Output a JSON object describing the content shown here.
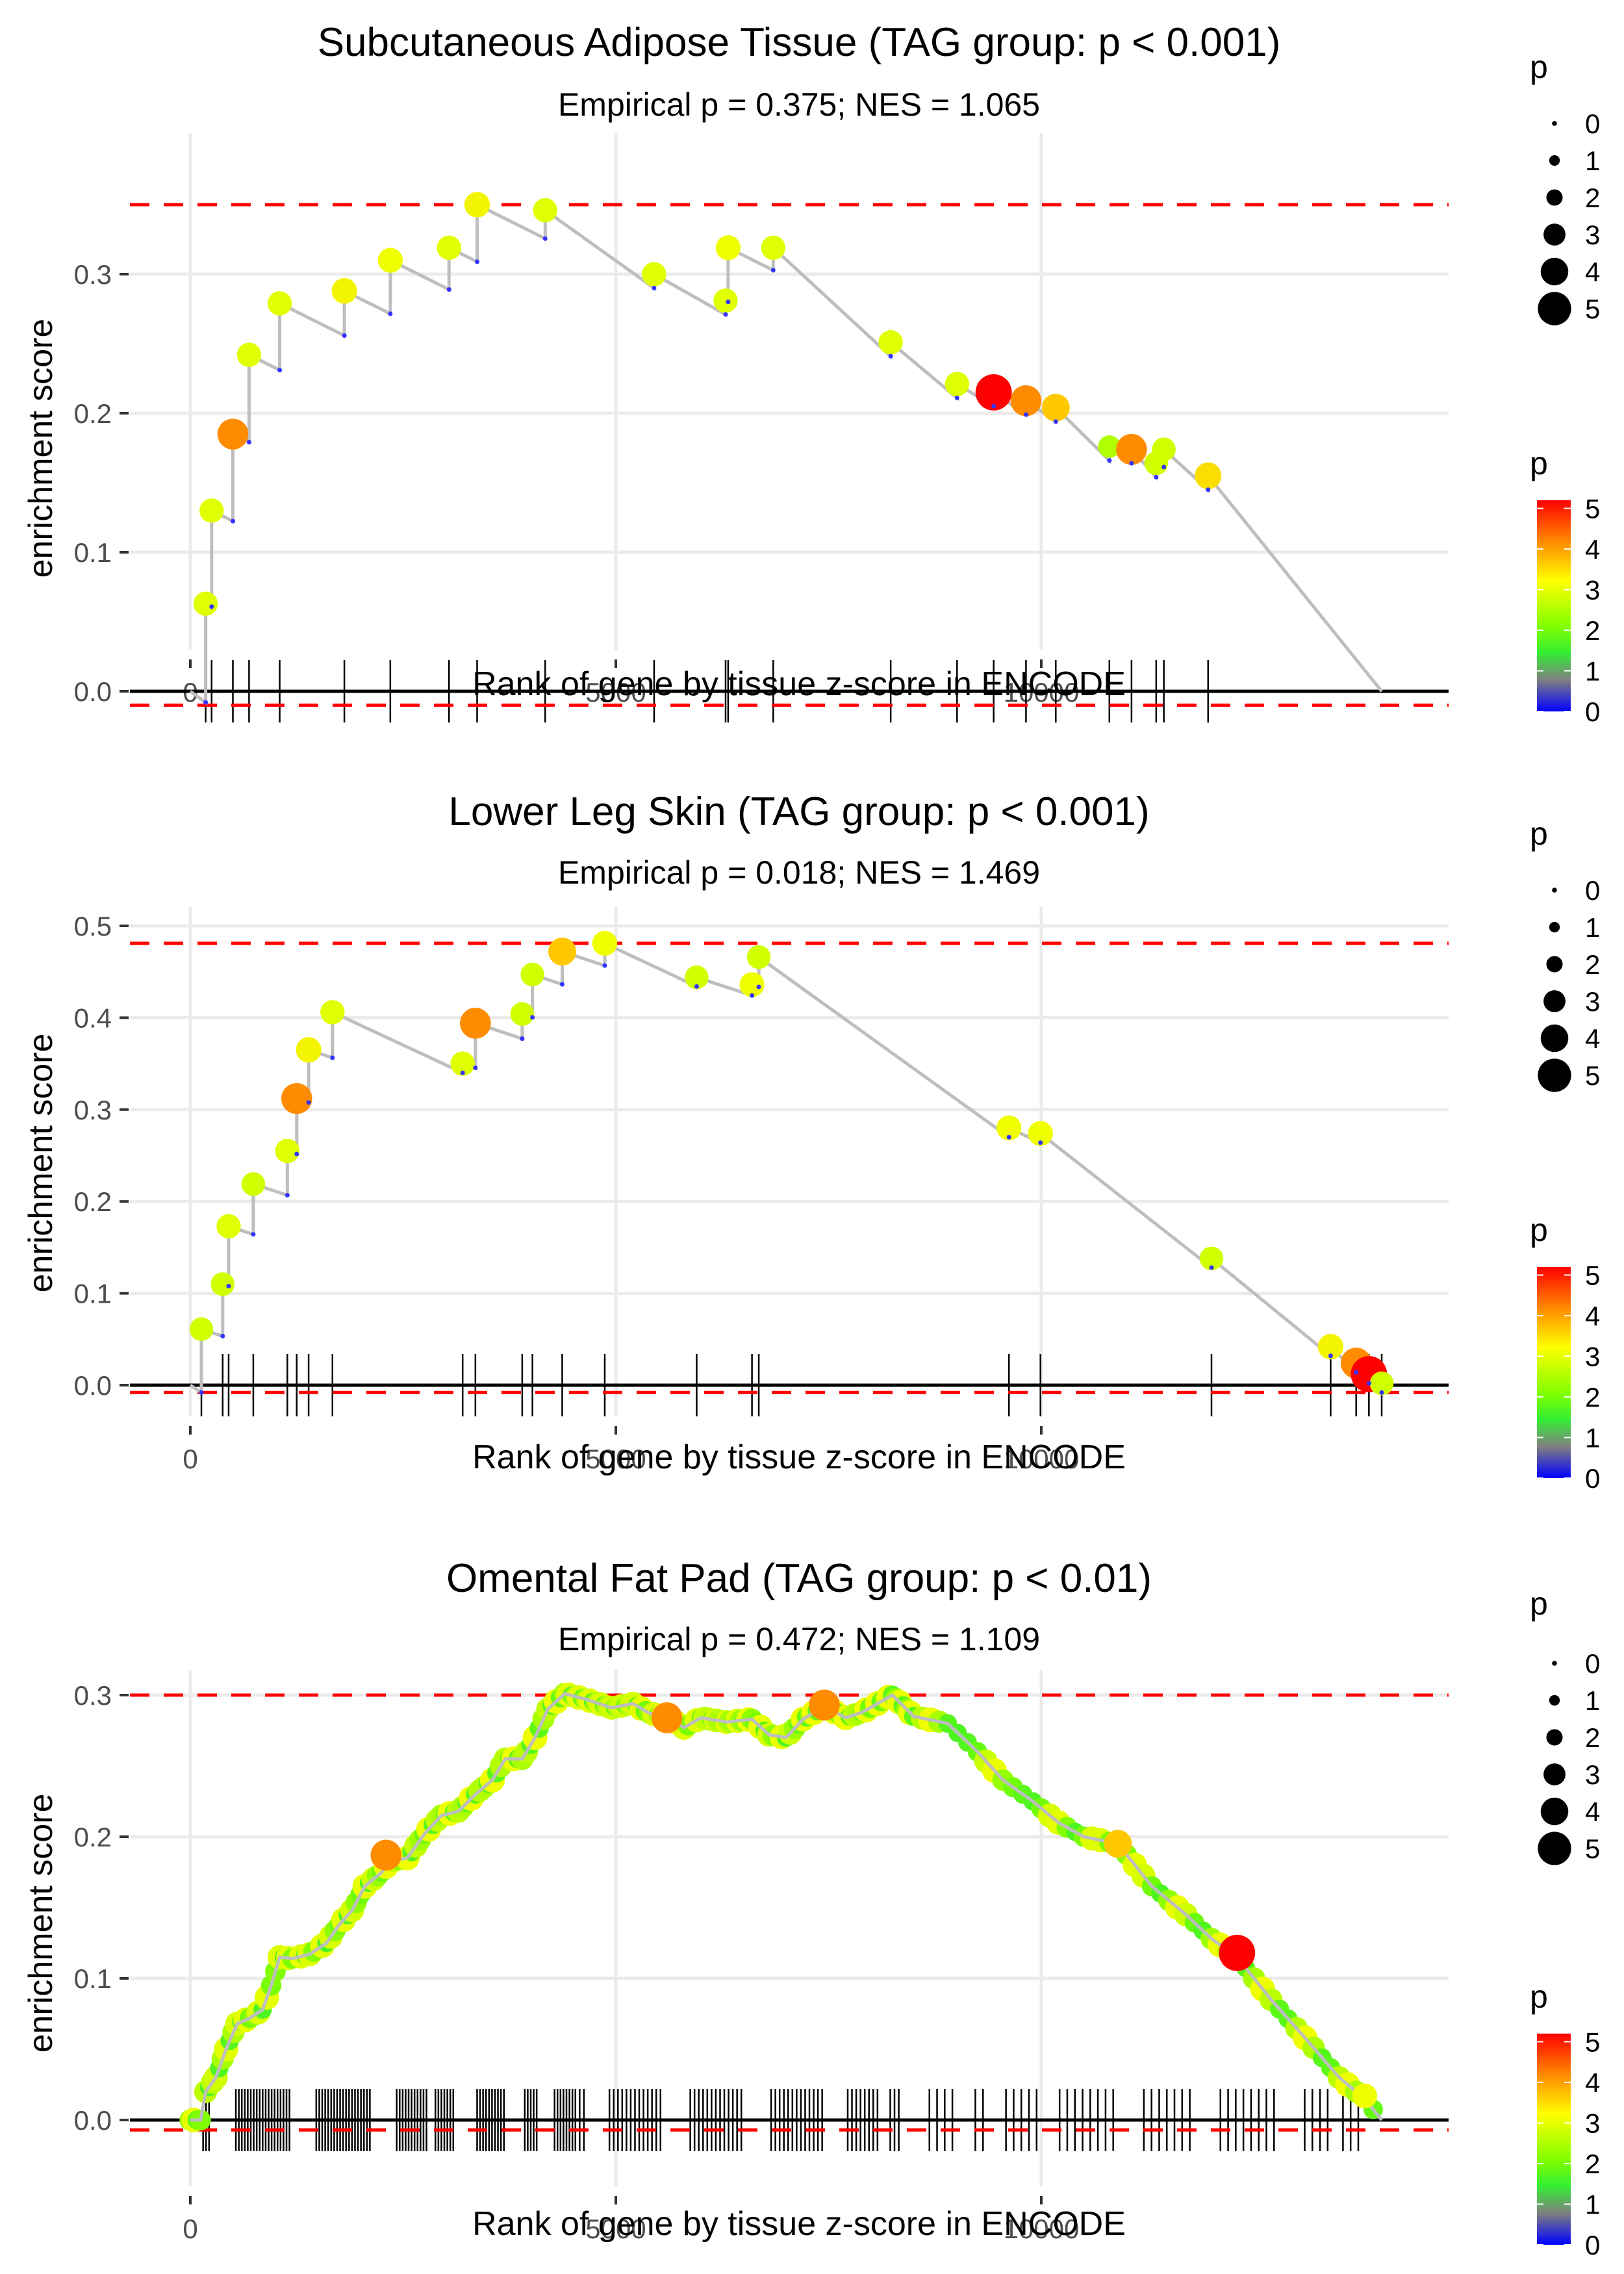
{
  "chart_data": [
    {
      "type": "line",
      "title": "Subcutaneous Adipose Tissue (TAG group: p < 0.001)",
      "subtitle": "Empirical p = 0.375; NES = 1.065",
      "xlabel": "Rank of gene by tissue z-score in ENCODE",
      "ylabel": "enrichment score",
      "xlim": [
        -700,
        14300
      ],
      "ylim": [
        -0.035,
        0.36
      ],
      "xticks": [
        0,
        5000,
        10000
      ],
      "xtick_labels": [
        "0",
        "5000",
        "10000"
      ],
      "yticks": [
        0.0,
        0.1,
        0.2,
        0.3
      ],
      "ytick_labels": [
        "0.0",
        "0.1",
        "0.2",
        "0.3"
      ],
      "max_es_line": 0.35,
      "min_es_line": -0.01,
      "end_rank": 14000,
      "hits": [
        {
          "x": 180,
          "es": 0.063,
          "p": 3.2
        },
        {
          "x": 250,
          "es": 0.13,
          "p": 3.2
        },
        {
          "x": 500,
          "es": 0.185,
          "p": 4.3
        },
        {
          "x": 690,
          "es": 0.242,
          "p": 3.2
        },
        {
          "x": 1050,
          "es": 0.279,
          "p": 3.2
        },
        {
          "x": 1810,
          "es": 0.288,
          "p": 3.4
        },
        {
          "x": 2350,
          "es": 0.31,
          "p": 3.3
        },
        {
          "x": 3040,
          "es": 0.319,
          "p": 3.2
        },
        {
          "x": 3370,
          "es": 0.35,
          "p": 3.4
        },
        {
          "x": 4170,
          "es": 0.346,
          "p": 3.2
        },
        {
          "x": 5450,
          "es": 0.3,
          "p": 3.2
        },
        {
          "x": 6290,
          "es": 0.281,
          "p": 3.2
        },
        {
          "x": 6320,
          "es": 0.319,
          "p": 3.3
        },
        {
          "x": 6850,
          "es": 0.319,
          "p": 3.2
        },
        {
          "x": 8230,
          "es": 0.251,
          "p": 3.2
        },
        {
          "x": 9010,
          "es": 0.221,
          "p": 3.2
        },
        {
          "x": 9440,
          "es": 0.215,
          "p": 5.2
        },
        {
          "x": 9820,
          "es": 0.209,
          "p": 4.3
        },
        {
          "x": 10170,
          "es": 0.204,
          "p": 3.8
        },
        {
          "x": 10800,
          "es": 0.176,
          "p": 2.9
        },
        {
          "x": 11060,
          "es": 0.174,
          "p": 4.3
        },
        {
          "x": 11350,
          "es": 0.164,
          "p": 3.1
        },
        {
          "x": 11440,
          "es": 0.174,
          "p": 3.1
        },
        {
          "x": 11960,
          "es": 0.155,
          "p": 3.6
        }
      ],
      "legend_size": {
        "title": "p",
        "labels": [
          "0",
          "1",
          "2",
          "3",
          "4",
          "5"
        ]
      },
      "legend_color": {
        "title": "p",
        "labels": [
          "5",
          "4",
          "3",
          "2",
          "1",
          "0"
        ],
        "colors": [
          "#ff0000",
          "#ff8000",
          "#ffff00",
          "#80ff00",
          "#33ff33",
          "#808080",
          "#0000ff"
        ]
      }
    },
    {
      "type": "line",
      "title": "Lower Leg Skin (TAG group: p < 0.001)",
      "subtitle": "Empirical p = 0.018; NES = 1.469",
      "xlabel": "Rank of gene by tissue z-score in ENCODE",
      "ylabel": "enrichment score",
      "xlim": [
        -700,
        14300
      ],
      "ylim": [
        -0.025,
        0.505
      ],
      "xticks": [
        0,
        5000,
        10000
      ],
      "xtick_labels": [
        "0",
        "5000",
        "10000"
      ],
      "yticks": [
        0.0,
        0.1,
        0.2,
        0.3,
        0.4,
        0.5
      ],
      "ytick_labels": [
        "0.0",
        "0.1",
        "0.2",
        "0.3",
        "0.4",
        "0.5"
      ],
      "max_es_line": 0.481,
      "min_es_line": -0.008,
      "end_rank": 14000,
      "hits": [
        {
          "x": 130,
          "es": 0.061,
          "p": 3.1
        },
        {
          "x": 380,
          "es": 0.11,
          "p": 3.1
        },
        {
          "x": 450,
          "es": 0.173,
          "p": 3.2
        },
        {
          "x": 740,
          "es": 0.219,
          "p": 3.1
        },
        {
          "x": 1140,
          "es": 0.255,
          "p": 3.2
        },
        {
          "x": 1250,
          "es": 0.312,
          "p": 4.3
        },
        {
          "x": 1390,
          "es": 0.365,
          "p": 3.4
        },
        {
          "x": 1670,
          "es": 0.406,
          "p": 3.2
        },
        {
          "x": 3200,
          "es": 0.35,
          "p": 3.2
        },
        {
          "x": 3350,
          "es": 0.394,
          "p": 4.3
        },
        {
          "x": 3900,
          "es": 0.404,
          "p": 3.1
        },
        {
          "x": 4020,
          "es": 0.447,
          "p": 3.1
        },
        {
          "x": 4370,
          "es": 0.472,
          "p": 3.8
        },
        {
          "x": 4870,
          "es": 0.481,
          "p": 3.3
        },
        {
          "x": 5950,
          "es": 0.444,
          "p": 3.1
        },
        {
          "x": 6600,
          "es": 0.436,
          "p": 3.3
        },
        {
          "x": 6680,
          "es": 0.466,
          "p": 3.1
        },
        {
          "x": 9620,
          "es": 0.28,
          "p": 3.3
        },
        {
          "x": 9990,
          "es": 0.274,
          "p": 3.3
        },
        {
          "x": 12000,
          "es": 0.138,
          "p": 3.1
        },
        {
          "x": 13400,
          "es": 0.042,
          "p": 3.4
        },
        {
          "x": 13700,
          "es": 0.024,
          "p": 4.3
        },
        {
          "x": 13850,
          "es": 0.012,
          "p": 5.2
        },
        {
          "x": 14000,
          "es": 0.002,
          "p": 3.1
        }
      ],
      "legend_size": {
        "title": "p",
        "labels": [
          "0",
          "1",
          "2",
          "3",
          "4",
          "5"
        ]
      },
      "legend_color": {
        "title": "p",
        "labels": [
          "5",
          "4",
          "3",
          "2",
          "1",
          "0"
        ],
        "colors": [
          "#ff0000",
          "#ff8000",
          "#ffff00",
          "#80ff00",
          "#33ff33",
          "#808080",
          "#0000ff"
        ]
      }
    },
    {
      "type": "line",
      "title": "Omental Fat Pad (TAG group: p < 0.01)",
      "subtitle": "Empirical p = 0.472; NES = 1.109",
      "xlabel": "Rank of gene by tissue z-score in ENCODE",
      "ylabel": "enrichment score",
      "xlim": [
        -700,
        14300
      ],
      "ylim": [
        -0.018,
        0.31
      ],
      "xticks": [
        0,
        5000,
        10000
      ],
      "xtick_labels": [
        "0",
        "5000",
        "10000"
      ],
      "yticks": [
        0.0,
        0.1,
        0.2,
        0.3
      ],
      "ytick_labels": [
        "0.0",
        "0.1",
        "0.2",
        "0.3"
      ],
      "max_es_line": 0.3,
      "min_es_line": -0.007,
      "end_rank": 14000,
      "curve": [
        [
          0,
          0.0
        ],
        [
          120,
          0.0
        ],
        [
          180,
          0.02
        ],
        [
          300,
          0.03
        ],
        [
          420,
          0.05
        ],
        [
          550,
          0.068
        ],
        [
          700,
          0.072
        ],
        [
          850,
          0.078
        ],
        [
          950,
          0.095
        ],
        [
          1050,
          0.115
        ],
        [
          1200,
          0.114
        ],
        [
          1400,
          0.117
        ],
        [
          1600,
          0.125
        ],
        [
          1750,
          0.138
        ],
        [
          1900,
          0.148
        ],
        [
          2050,
          0.165
        ],
        [
          2250,
          0.175
        ],
        [
          2350,
          0.183
        ],
        [
          2550,
          0.185
        ],
        [
          2750,
          0.202
        ],
        [
          2950,
          0.215
        ],
        [
          3150,
          0.218
        ],
        [
          3350,
          0.23
        ],
        [
          3550,
          0.24
        ],
        [
          3700,
          0.255
        ],
        [
          3900,
          0.255
        ],
        [
          4050,
          0.27
        ],
        [
          4200,
          0.29
        ],
        [
          4400,
          0.301
        ],
        [
          4650,
          0.297
        ],
        [
          4950,
          0.291
        ],
        [
          5200,
          0.294
        ],
        [
          5400,
          0.287
        ],
        [
          5600,
          0.285
        ],
        [
          5800,
          0.277
        ],
        [
          6000,
          0.284
        ],
        [
          6300,
          0.281
        ],
        [
          6600,
          0.283
        ],
        [
          6800,
          0.272
        ],
        [
          7000,
          0.27
        ],
        [
          7200,
          0.283
        ],
        [
          7450,
          0.292
        ],
        [
          7700,
          0.284
        ],
        [
          7900,
          0.288
        ],
        [
          8250,
          0.3
        ],
        [
          8500,
          0.285
        ],
        [
          8900,
          0.28
        ],
        [
          9250,
          0.26
        ],
        [
          9550,
          0.24
        ],
        [
          9900,
          0.225
        ],
        [
          10200,
          0.21
        ],
        [
          10500,
          0.2
        ],
        [
          10900,
          0.195
        ],
        [
          11300,
          0.165
        ],
        [
          11700,
          0.145
        ],
        [
          12000,
          0.128
        ],
        [
          12300,
          0.115
        ],
        [
          12700,
          0.085
        ],
        [
          13100,
          0.058
        ],
        [
          13500,
          0.03
        ],
        [
          13800,
          0.015
        ],
        [
          14000,
          0.0
        ]
      ],
      "highlighted_hits": [
        {
          "x": 2300,
          "es": 0.187,
          "p": 4.3
        },
        {
          "x": 5600,
          "es": 0.284,
          "p": 4.3
        },
        {
          "x": 7450,
          "es": 0.293,
          "p": 4.3
        },
        {
          "x": 10900,
          "es": 0.195,
          "p": 3.8
        },
        {
          "x": 12300,
          "es": 0.118,
          "p": 5.2
        },
        {
          "x": 13800,
          "es": 0.017,
          "p": 3.3
        }
      ],
      "legend_size": {
        "title": "p",
        "labels": [
          "0",
          "1",
          "2",
          "3",
          "4",
          "5"
        ]
      },
      "legend_color": {
        "title": "p",
        "labels": [
          "5",
          "4",
          "3",
          "2",
          "1",
          "0"
        ],
        "colors": [
          "#ff0000",
          "#ff8000",
          "#ffff00",
          "#80ff00",
          "#33ff33",
          "#808080",
          "#0000ff"
        ]
      }
    }
  ]
}
